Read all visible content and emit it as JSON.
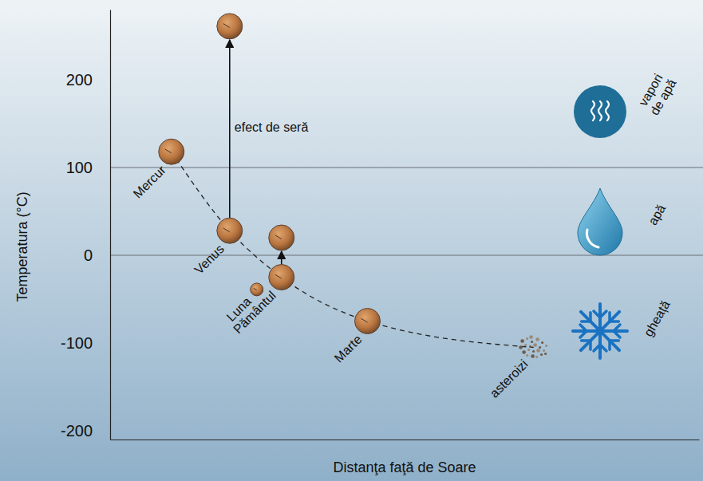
{
  "chart_data": {
    "type": "scatter",
    "y_label": "Temperatura (°C)",
    "x_label": "Distanţa faţă de Soare",
    "xlim": [
      0,
      100
    ],
    "ylim": [
      -210,
      280
    ],
    "yticks": [
      -200,
      -100,
      0,
      100,
      200
    ],
    "tick_labels": "y",
    "hlines": [
      0,
      100
    ],
    "line_style": "dashed",
    "points": [
      {
        "label": "Mercur",
        "x": 10.4,
        "y": 118,
        "marker": "planet",
        "on_curve": true
      },
      {
        "label": "Venus",
        "x": 20.3,
        "y": 28,
        "marker": "planet",
        "on_curve": true
      },
      {
        "label": "Luna",
        "x": 24.9,
        "y": -39,
        "marker": "moon",
        "on_curve": false
      },
      {
        "label": "Pământul",
        "x": 29.1,
        "y": -25,
        "marker": "planet",
        "on_curve": true
      },
      {
        "label": "Marte",
        "x": 43.7,
        "y": -75,
        "marker": "planet",
        "on_curve": true
      },
      {
        "label": "asteroizi",
        "x": 71.9,
        "y": -105,
        "marker": "asteroids",
        "on_curve": true
      }
    ],
    "arrows": [
      {
        "x": 20.3,
        "from": 28,
        "to": 261,
        "label": "efect de seră"
      },
      {
        "x": 29.1,
        "from": -25,
        "to": 20
      }
    ],
    "zones": [
      {
        "label": "vapori de apă"
      },
      {
        "label": "apă"
      },
      {
        "label": "gheață"
      }
    ]
  }
}
